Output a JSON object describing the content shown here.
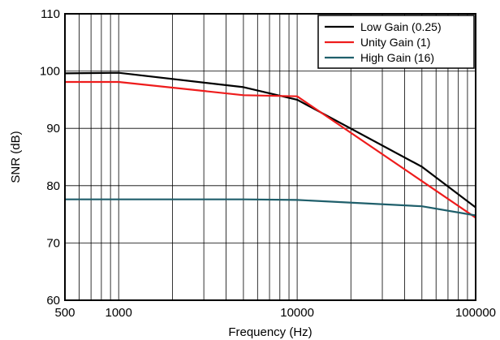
{
  "chart_data": {
    "type": "line",
    "xscale": "log",
    "xlabel": "Frequency (Hz)",
    "ylabel": "SNR (dB)",
    "xlim": [
      500,
      100000
    ],
    "ylim": [
      60,
      110
    ],
    "grid": true,
    "legend_position": "top-right",
    "x_ticks": [
      {
        "value": 500,
        "label": "500"
      },
      {
        "value": 1000,
        "label": "1000"
      },
      {
        "value": 10000,
        "label": "10000"
      },
      {
        "value": 100000,
        "label": "100000"
      }
    ],
    "y_ticks": [
      {
        "value": 60,
        "label": "60"
      },
      {
        "value": 70,
        "label": "70"
      },
      {
        "value": 80,
        "label": "80"
      },
      {
        "value": 90,
        "label": "90"
      },
      {
        "value": 100,
        "label": "100"
      },
      {
        "value": 110,
        "label": "110"
      }
    ],
    "series": [
      {
        "name": "Low Gain (0.25)",
        "color": "#000000",
        "x": [
          500,
          1000,
          5000,
          10000,
          50000,
          100000
        ],
        "y": [
          99.6,
          99.7,
          97.2,
          95.0,
          83.3,
          76.2
        ]
      },
      {
        "name": "Unity Gain (1)",
        "color": "#ee1c1c",
        "x": [
          500,
          1000,
          5000,
          10000,
          50000,
          100000
        ],
        "y": [
          98.1,
          98.1,
          95.8,
          95.6,
          80.8,
          74.4
        ]
      },
      {
        "name": "High Gain (16)",
        "color": "#1f5f6b",
        "x": [
          500,
          1000,
          5000,
          10000,
          50000,
          100000
        ],
        "y": [
          77.6,
          77.6,
          77.6,
          77.5,
          76.4,
          74.8
        ]
      }
    ]
  }
}
